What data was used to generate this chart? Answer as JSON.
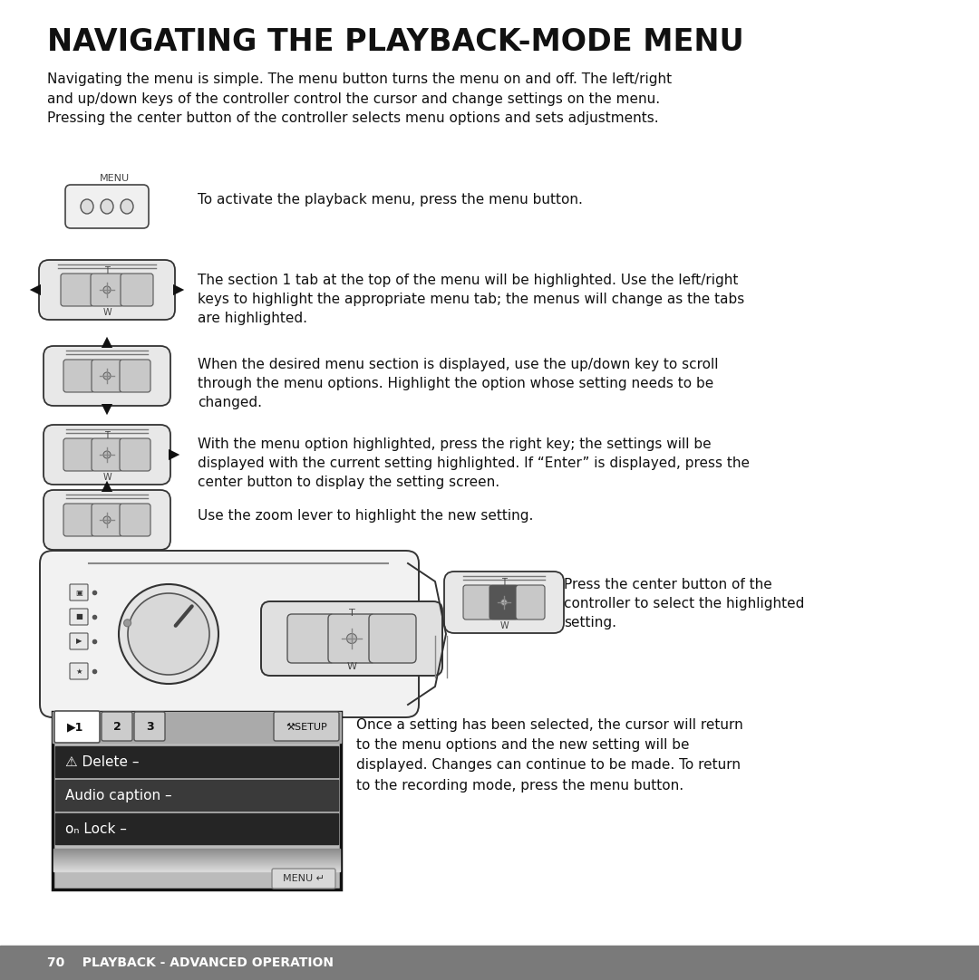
{
  "title": "NAVIGATING THE PLAYBACK-MODE MENU",
  "intro_text": "Navigating the menu is simple. The menu button turns the menu on and off. The left/right\nand up/down keys of the controller control the cursor and change settings on the menu.\nPressing the center button of the controller selects menu options and sets adjustments.",
  "footer_text": "70    PLAYBACK - ADVANCED OPERATION",
  "footer_bg": "#7a7a7a",
  "footer_text_color": "#ffffff",
  "bg_color": "#ffffff",
  "text_color": "#1a1a1a",
  "inst_texts": [
    "To activate the playback menu, press the menu button.",
    "The section 1 tab at the top of the menu will be highlighted. Use the left/right\nkeys to highlight the appropriate menu tab; the menus will change as the tabs\nare highlighted.",
    "When the desired menu section is displayed, use the up/down key to scroll\nthrough the menu options. Highlight the option whose setting needs to be\nchanged.",
    "With the menu option highlighted, press the right key; the settings will be\ndisplayed with the current setting highlighted. If “Enter” is displayed, press the\ncenter button to display the setting screen.",
    "Use the zoom lever to highlight the new setting."
  ],
  "press_center_text": "Press the center button of the\ncontroller to select the highlighted\nsetting.",
  "bottom_text": "Once a setting has been selected, the cursor will return\nto the menu options and the new setting will be\ndisplayed. Changes can continue to be made. To return\nto the recording mode, press the menu button.",
  "menu_item_labels": [
    "⚠ Delete",
    "Audio caption",
    "ᴏₙ Lock"
  ],
  "menu_item_dash": " –",
  "tab_labels": [
    "▶1",
    "2",
    "3",
    "⚒SETUP"
  ]
}
